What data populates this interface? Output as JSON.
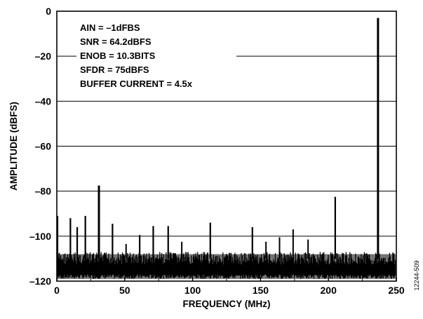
{
  "chart_data": {
    "type": "line",
    "xlabel": "FREQUENCY (MHz)",
    "ylabel": "AMPLITUDE (dBFS)",
    "xlim": [
      0,
      250
    ],
    "ylim": [
      -120,
      0
    ],
    "x_ticks": [
      0,
      50,
      100,
      150,
      200,
      250
    ],
    "y_ticks": [
      0,
      -20,
      -40,
      -60,
      -80,
      -100,
      -120
    ],
    "x_tick_labels": [
      "0",
      "50",
      "100",
      "150",
      "200",
      "250"
    ],
    "y_tick_labels": [
      "0",
      "–20",
      "–40",
      "–60",
      "–80",
      "–100",
      "–120"
    ],
    "grid": "horizontal",
    "annotations": [
      "AIN = –1dFBS",
      "SNR = 64.2dBFS",
      "ENOB = 10.3BITS",
      "SFDR = 75dBFS",
      "BUFFER CURRENT = 4.5x"
    ],
    "noise_floor_band": [
      -119,
      -107
    ],
    "series": [
      {
        "x": [
          0.5,
          10,
          15,
          21,
          31,
          41,
          51,
          61,
          71,
          82,
          92,
          113,
          144,
          154,
          164,
          174,
          185,
          205,
          236.5
        ],
        "y": [
          -91,
          -92,
          -96,
          -91,
          -77.5,
          -94.5,
          -103.5,
          -99.5,
          -95.5,
          -95.5,
          -102.5,
          -94,
          -96,
          -102.5,
          -100.5,
          -97,
          -101.5,
          -82.5,
          -3
        ]
      }
    ],
    "figure_id": "12244-509"
  }
}
